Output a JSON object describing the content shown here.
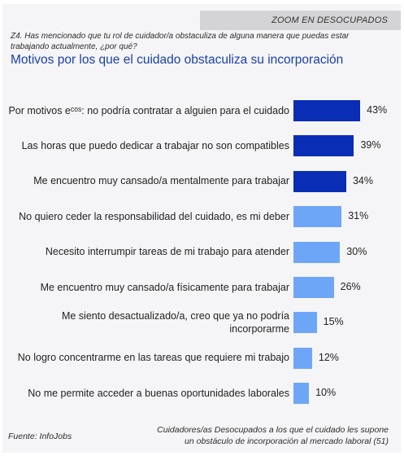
{
  "header": {
    "tag": "ZOOM EN DESOCUPADOS",
    "question": "Z4. Has mencionado que tu rol de cuidador/a obstaculiza de alguna manera que puedas estar trabajando actualmente, ¿por qué?"
  },
  "chart_data": {
    "type": "bar",
    "orientation": "horizontal",
    "title": "Motivos por los que el cuidado obstaculiza su incorporación",
    "value_suffix": "%",
    "xlim": [
      0,
      100
    ],
    "grid": false,
    "legend": "none",
    "colors": {
      "dark": "#0a2db5",
      "light": "#6ea6f7"
    },
    "categories": [
      "Por motivos eᶜᵒˢ: no podría contratar a alguien para el cuidado",
      "Las horas que puedo dedicar a trabajar no son compatibles",
      "Me encuentro muy cansado/a mentalmente para trabajar",
      "No quiero ceder la responsabilidad del cuidado, es mi deber",
      "Necesito interrumpir tareas de mi trabajo para atender",
      "Me encuentro muy cansado/a físicamente para trabajar",
      "Me siento desactualizado/a, creo que ya no podría incorporarme",
      "No logro concentrarme en las tareas que requiere mi trabajo",
      "No me permite acceder a buenas oportunidades laborales"
    ],
    "values": [
      43,
      39,
      34,
      31,
      30,
      26,
      15,
      12,
      10
    ],
    "highlight": [
      true,
      true,
      true,
      false,
      false,
      false,
      false,
      false,
      false
    ]
  },
  "footer": {
    "source": "Fuente: InfoJobs",
    "base_line1": "Cuidadores/as Desocupados a los que el cuidado les supone",
    "base_line2": "un obstáculo de incorporación al mercado laboral (51)"
  }
}
